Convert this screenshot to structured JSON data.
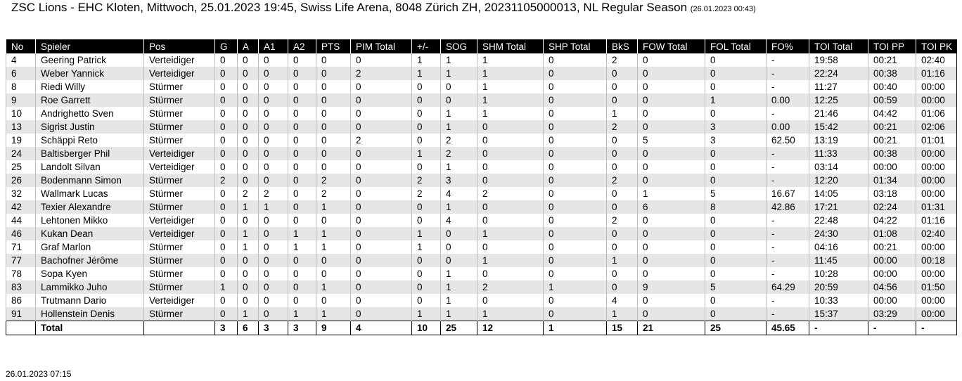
{
  "header": {
    "title": "ZSC Lions - EHC Kloten, Mittwoch, 25.01.2023 19:45, Swiss Life Arena, 8048 Zürich ZH, 20231105000013, NL Regular Season",
    "timestamp": "(26.01.2023 00:43)"
  },
  "table": {
    "columns": [
      "No",
      "Spieler",
      "Pos",
      "G",
      "A",
      "A1",
      "A2",
      "PTS",
      "PIM Total",
      "+/-",
      "SOG",
      "SHM Total",
      "SHP Total",
      "BkS",
      "FOW Total",
      "FOL Total",
      "FO%",
      "TOI Total",
      "TOI PP",
      "TOI PK"
    ],
    "rows": [
      [
        "4",
        "Geering Patrick",
        "Verteidiger",
        "0",
        "0",
        "0",
        "0",
        "0",
        "0",
        "1",
        "1",
        "1",
        "0",
        "2",
        "0",
        "0",
        "-",
        "19:58",
        "00:21",
        "02:40"
      ],
      [
        "6",
        "Weber Yannick",
        "Verteidiger",
        "0",
        "0",
        "0",
        "0",
        "0",
        "2",
        "1",
        "1",
        "1",
        "0",
        "0",
        "0",
        "0",
        "-",
        "22:24",
        "00:38",
        "01:16"
      ],
      [
        "8",
        "Riedi Willy",
        "Stürmer",
        "0",
        "0",
        "0",
        "0",
        "0",
        "0",
        "0",
        "0",
        "1",
        "0",
        "0",
        "0",
        "0",
        "-",
        "11:27",
        "00:40",
        "00:00"
      ],
      [
        "9",
        "Roe Garrett",
        "Stürmer",
        "0",
        "0",
        "0",
        "0",
        "0",
        "0",
        "0",
        "0",
        "1",
        "0",
        "0",
        "0",
        "1",
        "0.00",
        "12:25",
        "00:59",
        "00:00"
      ],
      [
        "10",
        "Andrighetto Sven",
        "Stürmer",
        "0",
        "0",
        "0",
        "0",
        "0",
        "0",
        "0",
        "1",
        "1",
        "0",
        "1",
        "0",
        "0",
        "-",
        "21:46",
        "04:42",
        "01:06"
      ],
      [
        "13",
        "Sigrist Justin",
        "Stürmer",
        "0",
        "0",
        "0",
        "0",
        "0",
        "0",
        "0",
        "1",
        "0",
        "0",
        "2",
        "0",
        "3",
        "0.00",
        "15:42",
        "00:21",
        "02:06"
      ],
      [
        "19",
        "Schäppi Reto",
        "Stürmer",
        "0",
        "0",
        "0",
        "0",
        "0",
        "2",
        "0",
        "2",
        "0",
        "0",
        "0",
        "5",
        "3",
        "62.50",
        "13:19",
        "00:21",
        "01:01"
      ],
      [
        "24",
        "Baltisberger Phil",
        "Verteidiger",
        "0",
        "0",
        "0",
        "0",
        "0",
        "0",
        "1",
        "2",
        "0",
        "0",
        "0",
        "0",
        "0",
        "-",
        "11:33",
        "00:38",
        "00:00"
      ],
      [
        "25",
        "Landolt Silvan",
        "Verteidiger",
        "0",
        "0",
        "0",
        "0",
        "0",
        "0",
        "0",
        "1",
        "0",
        "0",
        "0",
        "0",
        "0",
        "-",
        "03:14",
        "00:00",
        "00:00"
      ],
      [
        "26",
        "Bodenmann Simon",
        "Stürmer",
        "2",
        "0",
        "0",
        "0",
        "2",
        "0",
        "2",
        "3",
        "0",
        "0",
        "2",
        "0",
        "0",
        "-",
        "12:20",
        "01:34",
        "00:00"
      ],
      [
        "32",
        "Wallmark Lucas",
        "Stürmer",
        "0",
        "2",
        "2",
        "0",
        "2",
        "0",
        "2",
        "4",
        "2",
        "0",
        "0",
        "1",
        "5",
        "16.67",
        "14:05",
        "03:18",
        "00:00"
      ],
      [
        "42",
        "Texier Alexandre",
        "Stürmer",
        "0",
        "1",
        "1",
        "0",
        "1",
        "0",
        "0",
        "1",
        "0",
        "0",
        "0",
        "6",
        "8",
        "42.86",
        "17:21",
        "02:24",
        "01:31"
      ],
      [
        "44",
        "Lehtonen Mikko",
        "Verteidiger",
        "0",
        "0",
        "0",
        "0",
        "0",
        "0",
        "0",
        "4",
        "0",
        "0",
        "2",
        "0",
        "0",
        "-",
        "22:48",
        "04:22",
        "01:16"
      ],
      [
        "46",
        "Kukan Dean",
        "Verteidiger",
        "0",
        "1",
        "0",
        "1",
        "1",
        "0",
        "1",
        "0",
        "1",
        "0",
        "0",
        "0",
        "0",
        "-",
        "24:30",
        "01:08",
        "02:40"
      ],
      [
        "71",
        "Graf Marlon",
        "Stürmer",
        "0",
        "1",
        "0",
        "1",
        "1",
        "0",
        "1",
        "0",
        "0",
        "0",
        "0",
        "0",
        "0",
        "-",
        "04:16",
        "00:21",
        "00:00"
      ],
      [
        "77",
        "Bachofner Jérôme",
        "Stürmer",
        "0",
        "0",
        "0",
        "0",
        "0",
        "0",
        "0",
        "0",
        "1",
        "0",
        "1",
        "0",
        "0",
        "-",
        "11:45",
        "00:00",
        "00:18"
      ],
      [
        "78",
        "Sopa Kyen",
        "Stürmer",
        "0",
        "0",
        "0",
        "0",
        "0",
        "0",
        "0",
        "1",
        "0",
        "0",
        "0",
        "0",
        "0",
        "-",
        "10:28",
        "00:00",
        "00:00"
      ],
      [
        "83",
        "Lammikko Juho",
        "Stürmer",
        "1",
        "0",
        "0",
        "0",
        "1",
        "0",
        "0",
        "1",
        "2",
        "1",
        "0",
        "9",
        "5",
        "64.29",
        "20:59",
        "04:56",
        "01:50"
      ],
      [
        "86",
        "Trutmann Dario",
        "Verteidiger",
        "0",
        "0",
        "0",
        "0",
        "0",
        "0",
        "0",
        "1",
        "0",
        "0",
        "4",
        "0",
        "0",
        "-",
        "10:33",
        "00:00",
        "00:00"
      ],
      [
        "91",
        "Hollenstein Denis",
        "Stürmer",
        "0",
        "1",
        "0",
        "1",
        "1",
        "0",
        "1",
        "1",
        "1",
        "0",
        "1",
        "0",
        "0",
        "-",
        "15:37",
        "03:29",
        "00:00"
      ]
    ],
    "total": {
      "label": "Total",
      "values": [
        "3",
        "6",
        "3",
        "3",
        "9",
        "4",
        "10",
        "25",
        "12",
        "1",
        "15",
        "21",
        "25",
        "45.65",
        "-",
        "-",
        "-"
      ]
    }
  },
  "footer": {
    "printed": "26.01.2023 07:15"
  }
}
